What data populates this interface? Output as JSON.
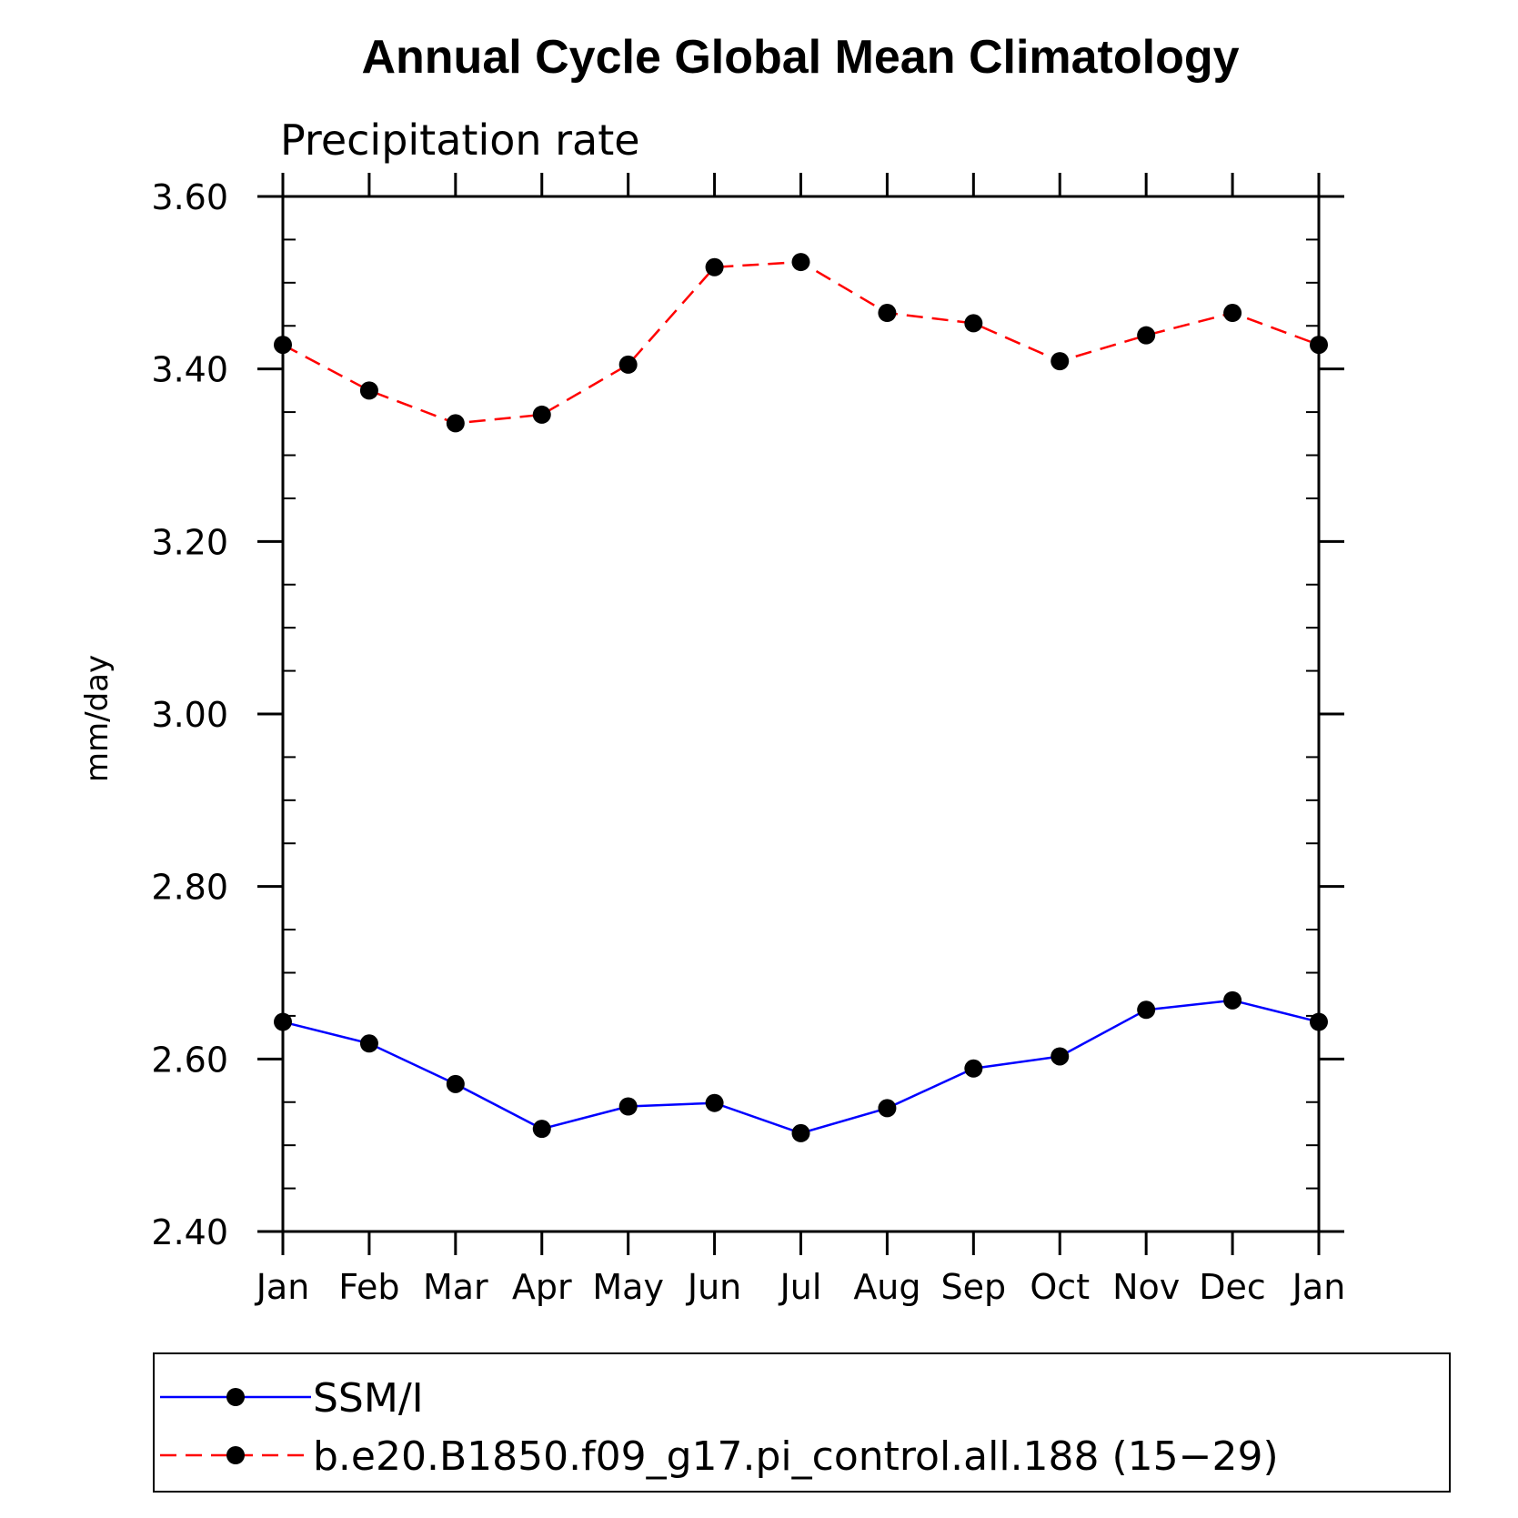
{
  "chart_data": {
    "type": "line",
    "title": "Annual Cycle Global Mean Climatology",
    "subtitle": "Precipitation rate",
    "ylabel": "mm/day",
    "xlabel": "",
    "categories": [
      "Jan",
      "Feb",
      "Mar",
      "Apr",
      "May",
      "Jun",
      "Jul",
      "Aug",
      "Sep",
      "Oct",
      "Nov",
      "Dec",
      "Jan"
    ],
    "ylim": [
      2.4,
      3.6
    ],
    "yticks": [
      "2.40",
      "2.60",
      "2.80",
      "3.00",
      "3.20",
      "3.40",
      "3.60"
    ],
    "ytick_values": [
      2.4,
      2.6,
      2.8,
      3.0,
      3.2,
      3.4,
      3.6
    ],
    "grid": false,
    "legend_position": "bottom",
    "series": [
      {
        "name": "SSM/I",
        "color": "#0000ff",
        "dashed": false,
        "values": [
          2.643,
          2.618,
          2.571,
          2.519,
          2.545,
          2.549,
          2.514,
          2.543,
          2.589,
          2.603,
          2.657,
          2.668,
          2.643
        ]
      },
      {
        "name": "b.e20.B1850.f09_g17.pi_control.all.188 (15−29)",
        "color": "#ff0000",
        "dashed": true,
        "values": [
          3.428,
          3.375,
          3.337,
          3.347,
          3.405,
          3.518,
          3.524,
          3.465,
          3.453,
          3.409,
          3.439,
          3.465,
          3.428
        ]
      }
    ]
  }
}
